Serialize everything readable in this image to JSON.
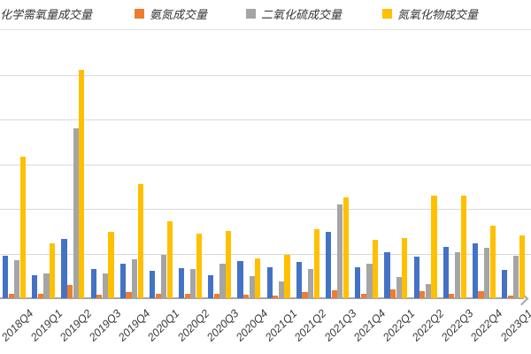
{
  "legend": {
    "items": [
      {
        "label": "化学需氧量成交量",
        "color": "#4472C4",
        "marker_clipped_offscreen": true
      },
      {
        "label": "氨氮成交量",
        "color": "#ED7D31"
      },
      {
        "label": "二氧化硫成交量",
        "color": "#A5A5A5"
      },
      {
        "label": "氮氧化物成交量",
        "color": "#FFC000"
      }
    ],
    "position": "top"
  },
  "chart_data": {
    "type": "bar",
    "title": "",
    "xlabel": "",
    "ylabel": "",
    "categories": [
      "2018Q4",
      "2019Q1",
      "2019Q2",
      "2019Q3",
      "2019Q4",
      "2020Q1",
      "2020Q2",
      "2020Q3",
      "2020Q4",
      "2021Q1",
      "2021Q2",
      "2021Q3",
      "2021Q4",
      "2022Q1",
      "2022Q2",
      "2022Q3",
      "2022Q4",
      "2023Q1"
    ],
    "series": [
      {
        "name": "化学需氧量成交量",
        "color": "#4472C4",
        "values": [
          48,
          26,
          66,
          33,
          39,
          31,
          34,
          26,
          42,
          35,
          41,
          74,
          35,
          52,
          47,
          58,
          62,
          32
        ]
      },
      {
        "name": "氨氮成交量",
        "color": "#ED7D31",
        "values": [
          5,
          5,
          15,
          4,
          7,
          5,
          5,
          5,
          4,
          3,
          7,
          9,
          5,
          10,
          8,
          5,
          8,
          3
        ]
      },
      {
        "name": "二氧化硫成交量",
        "color": "#A5A5A5",
        "values": [
          43,
          28,
          190,
          28,
          44,
          49,
          33,
          39,
          25,
          19,
          33,
          105,
          39,
          24,
          16,
          52,
          57,
          48
        ]
      },
      {
        "name": "氮氧化物成交量",
        "color": "#FFC000",
        "values": [
          159,
          62,
          256,
          74,
          128,
          86,
          72,
          75,
          45,
          49,
          77,
          113,
          65,
          67,
          115,
          115,
          81,
          70
        ]
      }
    ],
    "ylim": [
      0,
      275
    ],
    "y_axis_labels_visible": false,
    "gridlines": "horizontal",
    "gridline_interval": 50,
    "legend_position": "top",
    "x_tick_rotation": -45,
    "x_axis_arrow": true,
    "first_category_clipped_left": true
  }
}
